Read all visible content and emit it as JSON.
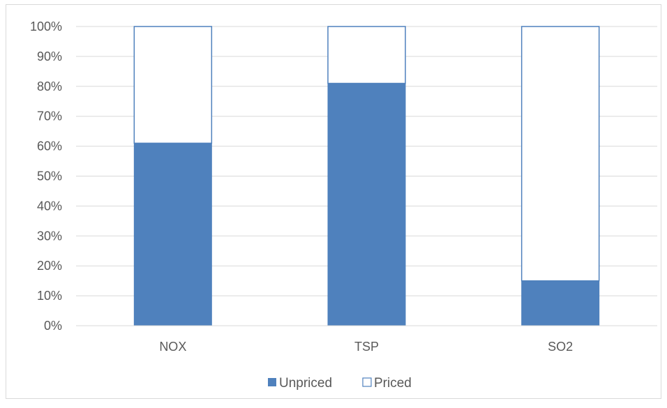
{
  "chart_data": {
    "type": "bar",
    "stacked": true,
    "categories": [
      "NOX",
      "TSP",
      "SO2"
    ],
    "series": [
      {
        "name": "Unpriced",
        "values": [
          61,
          81,
          15
        ]
      },
      {
        "name": "Priced",
        "values": [
          39,
          19,
          85
        ]
      }
    ],
    "title": "",
    "xlabel": "",
    "ylabel": "",
    "ylim": [
      0,
      100
    ],
    "yticks": [
      "0%",
      "10%",
      "20%",
      "30%",
      "40%",
      "50%",
      "60%",
      "70%",
      "80%",
      "90%",
      "100%"
    ],
    "grid": true,
    "legend_position": "bottom",
    "colors": {
      "Unpriced": "#4f81bd",
      "Priced": "#ffffff",
      "priced_border": "#4f81bd",
      "grid": "#d9d9d9"
    }
  }
}
